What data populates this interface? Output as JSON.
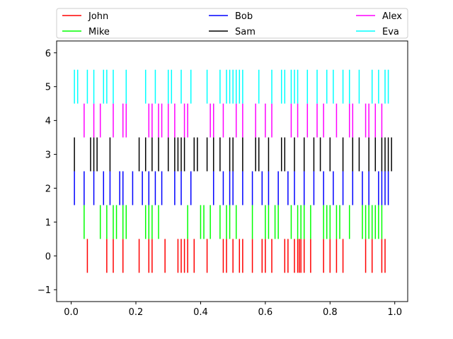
{
  "chart_data": {
    "type": "eventplot",
    "title": "",
    "xlabel": "",
    "ylabel": "",
    "xlim": [
      -0.045,
      1.04
    ],
    "ylim": [
      -1.35,
      6.35
    ],
    "xticks": [
      0.0,
      0.2,
      0.4,
      0.6,
      0.8,
      1.0
    ],
    "xtick_labels": [
      "0.0",
      "0.2",
      "0.4",
      "0.6",
      "0.8",
      "1.0"
    ],
    "yticks": [
      -1,
      0,
      1,
      2,
      3,
      4,
      5,
      6
    ],
    "ytick_labels": [
      "−1",
      "0",
      "1",
      "2",
      "3",
      "4",
      "5",
      "6"
    ],
    "grid": false,
    "legend_position": "top, above axes, 3 columns",
    "series": [
      {
        "name": "John",
        "color": "#ff0000",
        "lineoffset": 0,
        "linelength": 1,
        "events": [
          0.05,
          0.11,
          0.13,
          0.16,
          0.21,
          0.24,
          0.25,
          0.29,
          0.33,
          0.34,
          0.35,
          0.36,
          0.38,
          0.42,
          0.47,
          0.48,
          0.5,
          0.52,
          0.53,
          0.56,
          0.59,
          0.6,
          0.62,
          0.66,
          0.67,
          0.69,
          0.7,
          0.705,
          0.71,
          0.72,
          0.74,
          0.78,
          0.8,
          0.82,
          0.84,
          0.91,
          0.93,
          0.96,
          0.97
        ]
      },
      {
        "name": "Mike",
        "color": "#00ff00",
        "lineoffset": 1,
        "linelength": 1,
        "events": [
          0.04,
          0.09,
          0.11,
          0.13,
          0.14,
          0.16,
          0.17,
          0.23,
          0.24,
          0.25,
          0.27,
          0.36,
          0.4,
          0.41,
          0.43,
          0.46,
          0.48,
          0.49,
          0.51,
          0.56,
          0.6,
          0.61,
          0.63,
          0.64,
          0.68,
          0.7,
          0.71,
          0.72,
          0.74,
          0.78,
          0.79,
          0.8,
          0.82,
          0.83,
          0.86,
          0.9,
          0.91,
          0.92,
          0.93,
          0.94,
          0.95,
          0.96
        ]
      },
      {
        "name": "Bob",
        "color": "#0000ff",
        "lineoffset": 2,
        "linelength": 1,
        "events": [
          0.01,
          0.04,
          0.07,
          0.1,
          0.12,
          0.15,
          0.16,
          0.19,
          0.22,
          0.24,
          0.26,
          0.28,
          0.32,
          0.34,
          0.37,
          0.44,
          0.47,
          0.49,
          0.5,
          0.53,
          0.56,
          0.59,
          0.61,
          0.64,
          0.67,
          0.69,
          0.72,
          0.75,
          0.78,
          0.81,
          0.84,
          0.87,
          0.9,
          0.92,
          0.95,
          0.96,
          0.97,
          0.98
        ]
      },
      {
        "name": "Sam",
        "color": "#000000",
        "lineoffset": 3,
        "linelength": 1,
        "events": [
          0.01,
          0.06,
          0.07,
          0.08,
          0.12,
          0.21,
          0.23,
          0.25,
          0.27,
          0.3,
          0.32,
          0.33,
          0.34,
          0.35,
          0.38,
          0.39,
          0.42,
          0.44,
          0.46,
          0.49,
          0.5,
          0.53,
          0.57,
          0.58,
          0.61,
          0.65,
          0.66,
          0.69,
          0.72,
          0.75,
          0.77,
          0.8,
          0.84,
          0.87,
          0.89,
          0.92,
          0.94,
          0.96,
          0.97,
          0.98,
          0.99
        ]
      },
      {
        "name": "Alex",
        "color": "#ff00ff",
        "lineoffset": 4,
        "linelength": 1,
        "events": [
          0.04,
          0.07,
          0.09,
          0.13,
          0.16,
          0.17,
          0.24,
          0.25,
          0.27,
          0.28,
          0.3,
          0.32,
          0.35,
          0.36,
          0.43,
          0.44,
          0.47,
          0.51,
          0.53,
          0.57,
          0.6,
          0.62,
          0.68,
          0.7,
          0.73,
          0.76,
          0.78,
          0.82,
          0.86,
          0.87,
          0.91,
          0.92,
          0.94,
          0.96
        ]
      },
      {
        "name": "Eva",
        "color": "#00ffff",
        "lineoffset": 5,
        "linelength": 1,
        "events": [
          0.01,
          0.02,
          0.05,
          0.07,
          0.1,
          0.11,
          0.13,
          0.17,
          0.23,
          0.26,
          0.3,
          0.31,
          0.34,
          0.37,
          0.42,
          0.46,
          0.48,
          0.49,
          0.5,
          0.51,
          0.52,
          0.53,
          0.58,
          0.62,
          0.65,
          0.66,
          0.68,
          0.69,
          0.7,
          0.73,
          0.76,
          0.79,
          0.81,
          0.84,
          0.86,
          0.89,
          0.93,
          0.95,
          0.97,
          0.98
        ]
      }
    ]
  }
}
